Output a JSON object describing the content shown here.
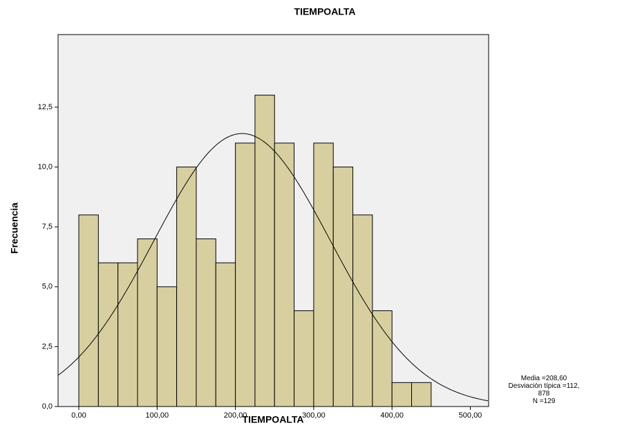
{
  "chart_data": {
    "type": "histogram",
    "title": "TIEMPOALTA",
    "x_label": "TIEMPOALTA",
    "y_label": "Frecuencia",
    "bins": [
      0,
      25,
      50,
      75,
      100,
      125,
      150,
      175,
      200,
      225,
      250,
      275,
      300,
      325,
      350,
      375,
      400,
      425,
      450
    ],
    "values": [
      8,
      6,
      6,
      7,
      5,
      10,
      7,
      6,
      11,
      13,
      11,
      4,
      11,
      10,
      8,
      4,
      1,
      1
    ],
    "color": "#d8cfa0",
    "xlim": [
      -26.5,
      523.4
    ],
    "ylim": [
      0,
      15.53
    ],
    "xticks": [
      {
        "value": 0,
        "label": "0,00"
      },
      {
        "value": 100,
        "label": "100,00"
      },
      {
        "value": 200,
        "label": "200,00"
      },
      {
        "value": 300,
        "label": "300,00"
      },
      {
        "value": 400,
        "label": "400,00"
      },
      {
        "value": 500,
        "label": "500,00"
      }
    ],
    "yticks": [
      {
        "value": 0,
        "label": "0,0"
      },
      {
        "value": 2.5,
        "label": "2,5"
      },
      {
        "value": 5,
        "label": "5,0"
      },
      {
        "value": 7.5,
        "label": "7,5"
      },
      {
        "value": 10,
        "label": "10,0"
      },
      {
        "value": 12.5,
        "label": "12,5"
      }
    ],
    "normal_curve": {
      "mean": {
        "value": 208.6,
        "label": "Media =208,60"
      },
      "sd": {
        "value": 112.878,
        "label": "Desviación típica =112,878"
      },
      "n": {
        "value": 129,
        "label": "N =129"
      }
    }
  }
}
